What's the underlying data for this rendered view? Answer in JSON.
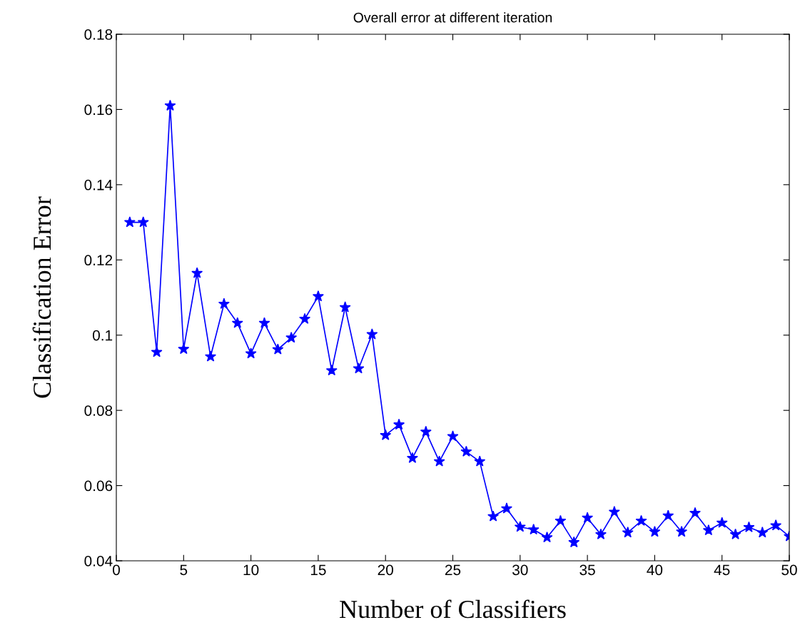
{
  "chart_data": {
    "type": "line",
    "title": "Overall error at different iteration",
    "xlabel": "Number of Classifiers",
    "ylabel": "Classification Error",
    "x": [
      1,
      2,
      3,
      4,
      5,
      6,
      7,
      8,
      9,
      10,
      11,
      12,
      13,
      14,
      15,
      16,
      17,
      18,
      19,
      20,
      21,
      22,
      23,
      24,
      25,
      26,
      27,
      28,
      29,
      30,
      31,
      32,
      33,
      34,
      35,
      36,
      37,
      38,
      39,
      40,
      41,
      42,
      43,
      44,
      45,
      46,
      47,
      48,
      49,
      50
    ],
    "series": [
      {
        "color": "#0000ff",
        "values": [
          0.13,
          0.13,
          0.0955,
          0.161,
          0.0963,
          0.1165,
          0.0943,
          0.1083,
          0.1032,
          0.0951,
          0.1032,
          0.0962,
          0.0993,
          0.1043,
          0.1103,
          0.0906,
          0.1074,
          0.0911,
          0.1002,
          0.0734,
          0.0762,
          0.0673,
          0.0743,
          0.0664,
          0.0731,
          0.069,
          0.0664,
          0.0518,
          0.0539,
          0.049,
          0.0483,
          0.0462,
          0.0506,
          0.0449,
          0.0514,
          0.047,
          0.053,
          0.0475,
          0.0506,
          0.0477,
          0.052,
          0.0477,
          0.0527,
          0.0481,
          0.0501,
          0.047,
          0.0489,
          0.0475,
          0.0494,
          0.0465
        ]
      }
    ],
    "xlim": [
      0,
      50
    ],
    "xticks": [
      0,
      5,
      10,
      15,
      20,
      25,
      30,
      35,
      40,
      45,
      50
    ],
    "ylim": [
      0.04,
      0.18
    ],
    "yticks": [
      0.04,
      0.06,
      0.08,
      0.1,
      0.12,
      0.14,
      0.16,
      0.18
    ],
    "marker": "star",
    "line_style": "solid",
    "grid": false,
    "legend": false
  }
}
